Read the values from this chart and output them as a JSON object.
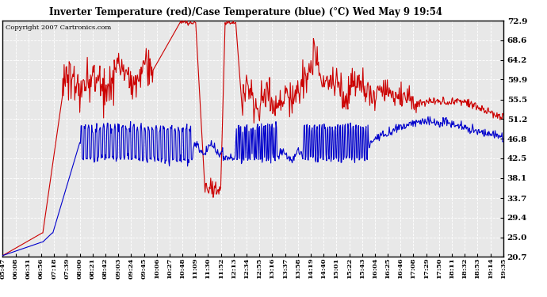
{
  "title": "Inverter Temperature (red)/Case Temperature (blue) (°C) Wed May 9 19:54",
  "copyright": "Copyright 2007 Cartronics.com",
  "ylim": [
    20.7,
    72.9
  ],
  "yticks": [
    20.7,
    25.0,
    29.4,
    33.7,
    38.1,
    42.5,
    46.8,
    51.2,
    55.5,
    59.9,
    64.2,
    68.6,
    72.9
  ],
  "bg_color": "#ffffff",
  "plot_bg_color": "#e8e8e8",
  "grid_color": "#ffffff",
  "red_color": "#cc0000",
  "blue_color": "#0000cc",
  "x_labels": [
    "05:47",
    "06:08",
    "06:31",
    "06:56",
    "07:18",
    "07:39",
    "08:00",
    "08:21",
    "08:42",
    "09:03",
    "09:24",
    "09:45",
    "10:06",
    "10:27",
    "10:48",
    "11:09",
    "11:30",
    "11:52",
    "12:13",
    "12:34",
    "12:55",
    "13:16",
    "13:37",
    "13:58",
    "14:19",
    "14:40",
    "15:01",
    "15:22",
    "15:43",
    "16:04",
    "16:25",
    "16:46",
    "17:08",
    "17:29",
    "17:50",
    "18:11",
    "18:32",
    "18:53",
    "19:14",
    "19:35"
  ]
}
